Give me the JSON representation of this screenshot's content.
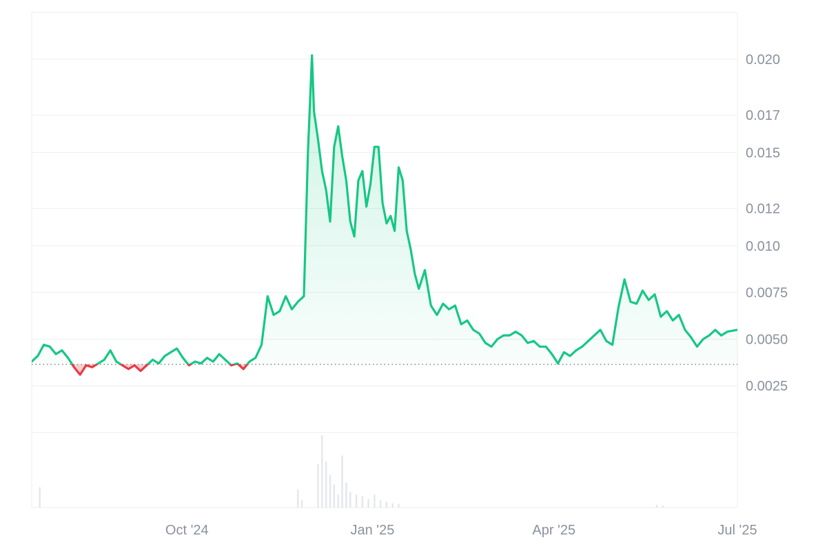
{
  "chart_data": {
    "type": "line",
    "title": "",
    "xlabel": "",
    "ylabel": "",
    "x_ticks": [
      "Oct '24",
      "Jan '25",
      "Apr '25",
      "Jul '25"
    ],
    "y_ticks": [
      "0.0025",
      "0.0050",
      "0.0075",
      "0.010",
      "0.012",
      "0.015",
      "0.017",
      "0.020"
    ],
    "x_range": [
      "2024-07-16",
      "2025-07-01"
    ],
    "ylim": [
      0.0,
      0.0225
    ],
    "baseline": 0.00365,
    "grid": true,
    "colors": {
      "up": "#16c784",
      "down": "#ea3943",
      "grid": "#eceef1",
      "volume": "#e3e7ec",
      "axis_text": "#8a919e"
    },
    "series": [
      {
        "x": [
          "2024-07-16",
          "2024-07-19",
          "2024-07-22",
          "2024-07-25",
          "2024-07-28",
          "2024-07-31",
          "2024-08-03",
          "2024-08-06",
          "2024-08-09",
          "2024-08-12",
          "2024-08-15",
          "2024-08-18",
          "2024-08-21",
          "2024-08-24",
          "2024-08-27",
          "2024-08-30",
          "2024-09-02",
          "2024-09-05",
          "2024-09-08",
          "2024-09-11",
          "2024-09-14",
          "2024-09-17",
          "2024-09-20",
          "2024-09-23",
          "2024-09-26",
          "2024-09-29",
          "2024-10-02",
          "2024-10-05",
          "2024-10-08",
          "2024-10-11",
          "2024-10-14",
          "2024-10-17",
          "2024-10-20",
          "2024-10-23",
          "2024-10-26",
          "2024-10-29",
          "2024-11-01",
          "2024-11-04",
          "2024-11-07",
          "2024-11-10",
          "2024-11-13",
          "2024-11-16",
          "2024-11-19",
          "2024-11-22",
          "2024-11-25",
          "2024-11-28",
          "2024-11-30",
          "2024-12-02",
          "2024-12-03",
          "2024-12-05",
          "2024-12-07",
          "2024-12-09",
          "2024-12-11",
          "2024-12-13",
          "2024-12-15",
          "2024-12-17",
          "2024-12-19",
          "2024-12-21",
          "2024-12-23",
          "2024-12-25",
          "2024-12-27",
          "2024-12-29",
          "2024-12-31",
          "2025-01-02",
          "2025-01-04",
          "2025-01-06",
          "2025-01-08",
          "2025-01-10",
          "2025-01-12",
          "2025-01-14",
          "2025-01-16",
          "2025-01-18",
          "2025-01-20",
          "2025-01-22",
          "2025-01-24",
          "2025-01-27",
          "2025-01-30",
          "2025-02-02",
          "2025-02-05",
          "2025-02-08",
          "2025-02-11",
          "2025-02-14",
          "2025-02-17",
          "2025-02-20",
          "2025-02-23",
          "2025-02-26",
          "2025-03-01",
          "2025-03-04",
          "2025-03-07",
          "2025-03-10",
          "2025-03-13",
          "2025-03-16",
          "2025-03-19",
          "2025-03-22",
          "2025-03-25",
          "2025-03-28",
          "2025-03-31",
          "2025-04-03",
          "2025-04-06",
          "2025-04-09",
          "2025-04-12",
          "2025-04-15",
          "2025-04-18",
          "2025-04-21",
          "2025-04-24",
          "2025-04-27",
          "2025-04-30",
          "2025-05-03",
          "2025-05-06",
          "2025-05-09",
          "2025-05-12",
          "2025-05-15",
          "2025-05-18",
          "2025-05-21",
          "2025-05-24",
          "2025-05-27",
          "2025-05-30",
          "2025-06-02",
          "2025-06-05",
          "2025-06-08",
          "2025-06-11",
          "2025-06-14",
          "2025-06-17",
          "2025-06-20",
          "2025-06-23",
          "2025-06-26",
          "2025-07-01"
        ],
        "y": [
          0.0038,
          0.0041,
          0.0047,
          0.0046,
          0.0042,
          0.0044,
          0.004,
          0.0035,
          0.0031,
          0.0036,
          0.0035,
          0.0037,
          0.0039,
          0.0044,
          0.0038,
          0.0036,
          0.0034,
          0.0036,
          0.0033,
          0.0036,
          0.0039,
          0.0037,
          0.0041,
          0.0043,
          0.0045,
          0.004,
          0.0036,
          0.0038,
          0.0037,
          0.004,
          0.0038,
          0.0042,
          0.0039,
          0.0036,
          0.0037,
          0.0034,
          0.0038,
          0.004,
          0.0047,
          0.0073,
          0.0063,
          0.0065,
          0.0073,
          0.0066,
          0.007,
          0.0073,
          0.015,
          0.0202,
          0.0172,
          0.0157,
          0.014,
          0.013,
          0.0113,
          0.0153,
          0.0164,
          0.0148,
          0.0135,
          0.0113,
          0.0105,
          0.0135,
          0.014,
          0.0121,
          0.0133,
          0.0153,
          0.0153,
          0.0123,
          0.0112,
          0.0116,
          0.0108,
          0.0142,
          0.0135,
          0.0108,
          0.0098,
          0.0085,
          0.0077,
          0.0087,
          0.0068,
          0.0063,
          0.0069,
          0.0066,
          0.0068,
          0.0058,
          0.006,
          0.0055,
          0.0053,
          0.0048,
          0.0046,
          0.005,
          0.0052,
          0.0052,
          0.0054,
          0.0052,
          0.0048,
          0.0049,
          0.0046,
          0.0046,
          0.0042,
          0.0037,
          0.0043,
          0.0041,
          0.0044,
          0.0046,
          0.0049,
          0.0052,
          0.0055,
          0.0049,
          0.0047,
          0.0067,
          0.0082,
          0.007,
          0.0069,
          0.0076,
          0.0071,
          0.0074,
          0.0062,
          0.0065,
          0.006,
          0.0063,
          0.0055,
          0.0051,
          0.0046,
          0.005,
          0.0052,
          0.0055,
          0.0052,
          0.0054,
          0.0055
        ]
      }
    ],
    "volume": {
      "x": [
        "2024-07-20",
        "2024-11-25",
        "2024-11-27",
        "2024-12-05",
        "2024-12-07",
        "2024-12-09",
        "2024-12-11",
        "2024-12-13",
        "2024-12-15",
        "2024-12-17",
        "2024-12-19",
        "2024-12-21",
        "2024-12-24",
        "2024-12-27",
        "2024-12-30",
        "2025-01-02",
        "2025-01-05",
        "2025-01-08",
        "2025-01-11",
        "2025-01-14",
        "2025-05-22",
        "2025-05-25"
      ],
      "y": [
        0.28,
        0.25,
        0.1,
        0.6,
        1.0,
        0.64,
        0.45,
        0.32,
        0.18,
        0.72,
        0.35,
        0.22,
        0.18,
        0.16,
        0.12,
        0.18,
        0.1,
        0.08,
        0.06,
        0.05,
        0.04,
        0.03
      ]
    }
  }
}
